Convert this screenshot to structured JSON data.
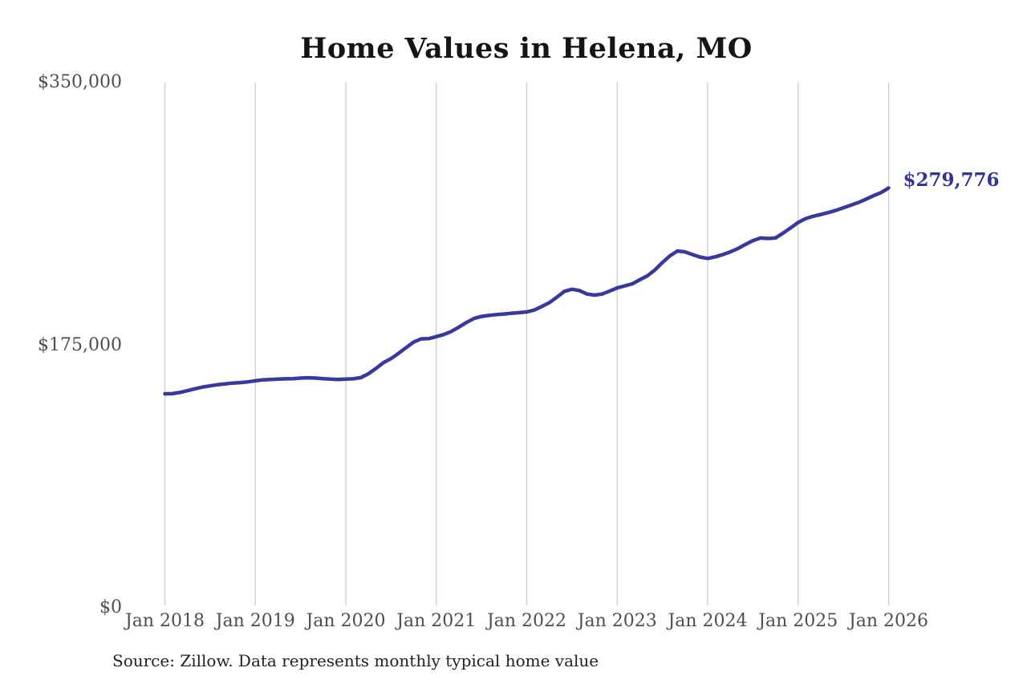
{
  "title": "Home Values in Helena, MO",
  "source_note": "Source: Zillow. Data represents monthly typical home value",
  "colors": {
    "background": "#ffffff",
    "line": "#38389d",
    "end_label": "#333399",
    "gridline": "#cccccc",
    "tick_label": "#4f4f4f",
    "title": "#151515",
    "source": "#222222"
  },
  "chart_data": {
    "type": "line",
    "title": "Home Values in Helena, MO",
    "xlabel": "",
    "ylabel": "",
    "ylim": [
      0,
      350000
    ],
    "grid": "vertical-only",
    "legend": "none",
    "x_tick_labels": [
      "Jan 2018",
      "Jan 2019",
      "Jan 2020",
      "Jan 2021",
      "Jan 2022",
      "Jan 2023",
      "Jan 2024",
      "Jan 2025",
      "Jan 2026"
    ],
    "y_ticks": [
      {
        "value": 0,
        "label": "$0"
      },
      {
        "value": 175000,
        "label": "$175,000"
      },
      {
        "value": 350000,
        "label": "$350,000"
      }
    ],
    "series": [
      {
        "name": "Monthly typical home value",
        "x_start": "Jan 2018",
        "x_end": "Jan 2026",
        "frequency": "monthly",
        "values": [
          142600,
          142700,
          143500,
          144700,
          146000,
          147100,
          147900,
          148700,
          149200,
          149800,
          150100,
          150600,
          151300,
          151900,
          152200,
          152400,
          152600,
          152700,
          153100,
          153300,
          153100,
          152700,
          152400,
          152200,
          152400,
          152600,
          153400,
          156000,
          159500,
          163400,
          166100,
          169600,
          173400,
          177100,
          179200,
          179400,
          180700,
          182100,
          184200,
          187100,
          190100,
          192800,
          194200,
          194900,
          195400,
          195800,
          196300,
          196700,
          197200,
          198400,
          200800,
          203400,
          207000,
          210900,
          212300,
          211400,
          209100,
          208400,
          209100,
          211100,
          213200,
          214500,
          215900,
          218600,
          221200,
          225100,
          230100,
          234600,
          237800,
          237200,
          235400,
          233700,
          232800,
          233900,
          235400,
          237200,
          239400,
          242100,
          244700,
          246500,
          246100,
          246500,
          249700,
          253200,
          256800,
          259400,
          260900,
          262100,
          263400,
          264800,
          266600,
          268300,
          270100,
          272300,
          274600,
          276700,
          279776
        ]
      }
    ],
    "final_value": 279776,
    "final_value_label": "$279,776"
  }
}
